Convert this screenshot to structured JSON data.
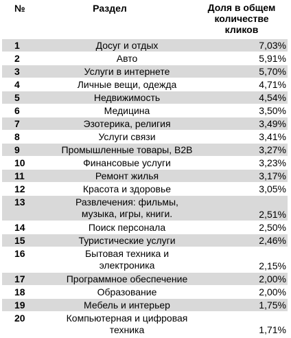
{
  "header": {
    "num": "№",
    "section": "Раздел",
    "share_lines": [
      "Доля в общем",
      "количестве",
      "кликов"
    ]
  },
  "rows": [
    {
      "num": "1",
      "section": [
        "Досуг и отдых"
      ],
      "share": "7,03%"
    },
    {
      "num": "2",
      "section": [
        "Авто"
      ],
      "share": "5,91%"
    },
    {
      "num": "3",
      "section": [
        "Услуги в интернете"
      ],
      "share": "5,70%"
    },
    {
      "num": "4",
      "section": [
        "Личные вещи, одежда"
      ],
      "share": "4,71%"
    },
    {
      "num": "5",
      "section": [
        "Недвижимость"
      ],
      "share": "4,54%"
    },
    {
      "num": "6",
      "section": [
        "Медицина"
      ],
      "share": "3,50%"
    },
    {
      "num": "7",
      "section": [
        "Эзотерика, религия"
      ],
      "share": "3,49%"
    },
    {
      "num": "8",
      "section": [
        "Услуги связи"
      ],
      "share": "3,41%"
    },
    {
      "num": "9",
      "section": [
        "Промышленные товары, B2B"
      ],
      "share": "3,27%"
    },
    {
      "num": "10",
      "section": [
        "Финансовые услуги"
      ],
      "share": "3,23%"
    },
    {
      "num": "11",
      "section": [
        "Ремонт жилья"
      ],
      "share": "3,17%"
    },
    {
      "num": "12",
      "section": [
        "Красота и здоровье"
      ],
      "share": "3,05%"
    },
    {
      "num": "13",
      "section": [
        "Развлечения: фильмы,",
        "музыка, игры, книги."
      ],
      "share": "2,51%"
    },
    {
      "num": "14",
      "section": [
        "Поиск персонала"
      ],
      "share": "2,50%"
    },
    {
      "num": "15",
      "section": [
        "Туристические услуги"
      ],
      "share": "2,46%"
    },
    {
      "num": "16",
      "section": [
        "Бытовая техника и",
        "электроника"
      ],
      "share": "2,15%"
    },
    {
      "num": "17",
      "section": [
        "Программное обеспечение"
      ],
      "share": "2,00%"
    },
    {
      "num": "18",
      "section": [
        "Образование"
      ],
      "share": "2,00%"
    },
    {
      "num": "19",
      "section": [
        "Мебель и интерьер"
      ],
      "share": "1,75%"
    },
    {
      "num": "20",
      "section": [
        "Компьютерная и цифровая",
        "техника"
      ],
      "share": "1,71%"
    }
  ]
}
